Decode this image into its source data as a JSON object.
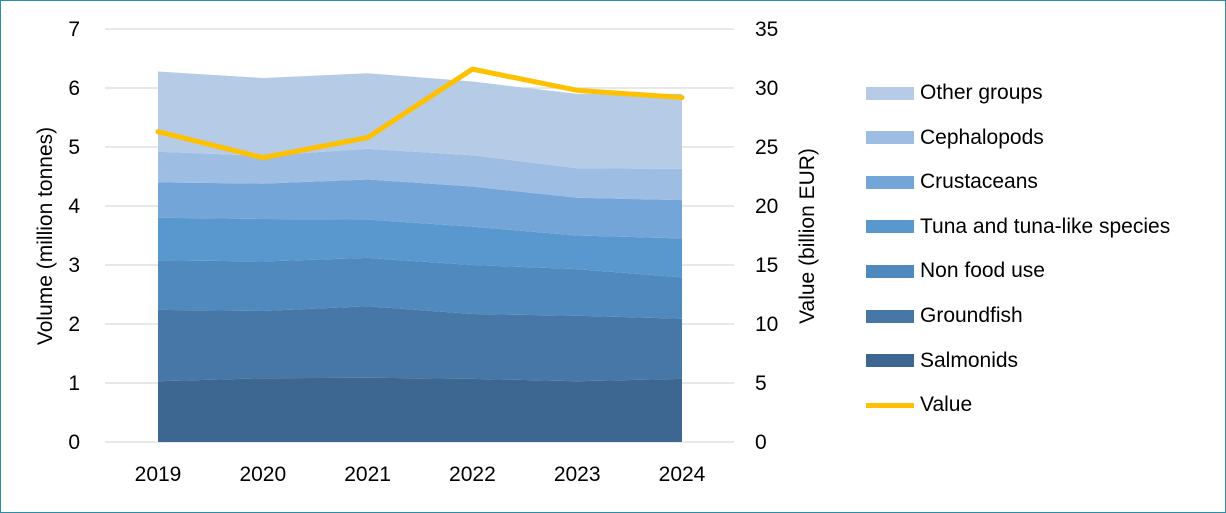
{
  "chart_data": {
    "type": "area",
    "x": [
      "2019",
      "2020",
      "2021",
      "2022",
      "2023",
      "2024"
    ],
    "ylabel": "Volume (million tonnes)",
    "y2label": "Value (billion EUR)",
    "ylim": [
      0,
      7
    ],
    "y2lim": [
      0,
      35
    ],
    "yticks": [
      "0",
      "1",
      "2",
      "3",
      "4",
      "5",
      "6",
      "7"
    ],
    "y2ticks": [
      "0",
      "5",
      "10",
      "15",
      "20",
      "25",
      "30",
      "35"
    ],
    "grid": true,
    "legend_position": "right",
    "series": [
      {
        "name": "Salmonids",
        "color": "#3d6690",
        "values": [
          1.03,
          1.08,
          1.09,
          1.07,
          1.03,
          1.07
        ]
      },
      {
        "name": "Groundfish",
        "color": "#4777a6",
        "values": [
          1.21,
          1.14,
          1.21,
          1.1,
          1.11,
          1.02
        ]
      },
      {
        "name": "Non food use",
        "color": "#4f89bd",
        "values": [
          0.84,
          0.84,
          0.82,
          0.83,
          0.79,
          0.7
        ]
      },
      {
        "name": "Tuna and tuna-like species",
        "color": "#5898cf",
        "values": [
          0.72,
          0.72,
          0.65,
          0.65,
          0.57,
          0.66
        ]
      },
      {
        "name": "Crustaceans",
        "color": "#73a5d8",
        "values": [
          0.6,
          0.6,
          0.68,
          0.68,
          0.64,
          0.65
        ]
      },
      {
        "name": "Cephalopods",
        "color": "#9dbde3",
        "values": [
          0.52,
          0.47,
          0.52,
          0.53,
          0.5,
          0.53
        ]
      },
      {
        "name": "Other groups",
        "color": "#b6cbe6",
        "values": [
          1.36,
          1.32,
          1.28,
          1.25,
          1.26,
          1.27
        ]
      }
    ],
    "line_series": {
      "name": "Value",
      "color": "#ffc000",
      "axis": "right",
      "values": [
        26.3,
        24.1,
        25.8,
        31.6,
        29.8,
        29.2
      ]
    }
  }
}
